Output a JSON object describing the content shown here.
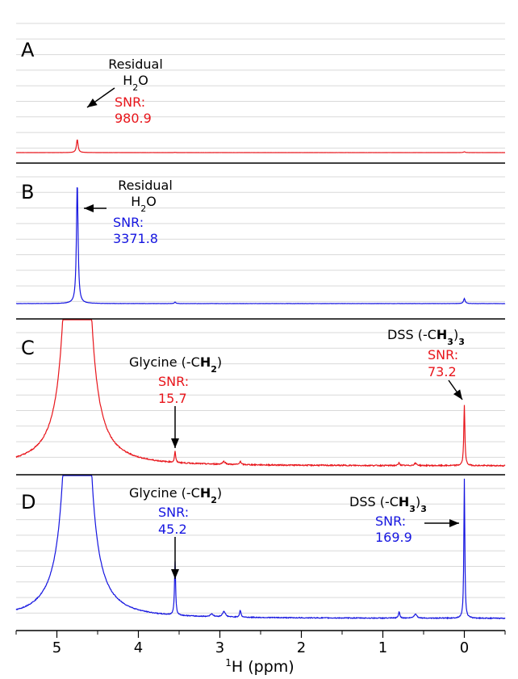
{
  "chart_data": {
    "type": "line",
    "xlabel_sup": "1",
    "xlabel_rest": "H (ppm)",
    "xlim": [
      5.5,
      -0.5
    ],
    "x_ticks": [
      5,
      4,
      3,
      2,
      1,
      0
    ],
    "x_tick_labels": [
      "5",
      "4",
      "3",
      "2",
      "1",
      "0"
    ],
    "grid": true,
    "panels": [
      {
        "label": "A",
        "color": "#e8151b",
        "peaks": [
          {
            "ppm": 4.75,
            "height": 0.3,
            "width": 0.012
          },
          {
            "ppm": 0.0,
            "height": 0.02,
            "width": 0.012
          },
          {
            "ppm": 3.55,
            "height": 0.005,
            "width": 0.01
          }
        ],
        "noise": 0.002,
        "annotations": [
          {
            "kind": "label",
            "lines": [
              "Residual",
              "H2O"
            ],
            "sub_index": 1
          },
          {
            "kind": "snr",
            "title": "SNR:",
            "value": "980.9"
          }
        ]
      },
      {
        "label": "B",
        "color": "#1515e0",
        "peaks": [
          {
            "ppm": 4.75,
            "height": 0.97,
            "width": 0.012
          },
          {
            "ppm": 0.0,
            "height": 0.04,
            "width": 0.012
          },
          {
            "ppm": 3.55,
            "height": 0.012,
            "width": 0.01
          }
        ],
        "noise": 0.002,
        "annotations": [
          {
            "kind": "label",
            "lines": [
              "Residual",
              "H2O"
            ],
            "sub_index": 1
          },
          {
            "kind": "snr",
            "title": "SNR:",
            "value": "3371.8"
          }
        ]
      },
      {
        "label": "C",
        "color": "#e8151b",
        "peaks": [
          {
            "ppm": 4.75,
            "height": 14.0,
            "width": 0.05
          },
          {
            "ppm": 3.55,
            "height": 0.08,
            "width": 0.008
          },
          {
            "ppm": 0.0,
            "height": 0.42,
            "width": 0.008
          },
          {
            "ppm": 2.95,
            "height": 0.02,
            "width": 0.02
          },
          {
            "ppm": 2.75,
            "height": 0.025,
            "width": 0.01
          },
          {
            "ppm": 0.8,
            "height": 0.02,
            "width": 0.01
          },
          {
            "ppm": 0.6,
            "height": 0.015,
            "width": 0.02
          }
        ],
        "noise": 0.008,
        "annotations": [
          {
            "kind": "title",
            "text": "Glycine (-CH2)"
          },
          {
            "kind": "snr",
            "title": "SNR:",
            "value": "15.7"
          },
          {
            "kind": "title",
            "text": "DSS (-CH3)3"
          },
          {
            "kind": "snr",
            "title": "SNR:",
            "value": "73.2"
          }
        ]
      },
      {
        "label": "D",
        "color": "#1515e0",
        "peaks": [
          {
            "ppm": 4.75,
            "height": 14.0,
            "width": 0.05
          },
          {
            "ppm": 3.55,
            "height": 0.38,
            "width": 0.008
          },
          {
            "ppm": 0.0,
            "height": 0.99,
            "width": 0.007
          },
          {
            "ppm": 2.95,
            "height": 0.04,
            "width": 0.02
          },
          {
            "ppm": 2.75,
            "height": 0.05,
            "width": 0.01
          },
          {
            "ppm": 3.1,
            "height": 0.02,
            "width": 0.02
          },
          {
            "ppm": 0.8,
            "height": 0.045,
            "width": 0.01
          },
          {
            "ppm": 0.6,
            "height": 0.03,
            "width": 0.02
          }
        ],
        "noise": 0.006,
        "annotations": [
          {
            "kind": "title",
            "text": "Glycine (-CH2)"
          },
          {
            "kind": "snr",
            "title": "SNR:",
            "value": "45.2"
          },
          {
            "kind": "title",
            "text": "DSS (-CH3)3"
          },
          {
            "kind": "snr",
            "title": "SNR:",
            "value": "169.9"
          }
        ]
      }
    ]
  }
}
